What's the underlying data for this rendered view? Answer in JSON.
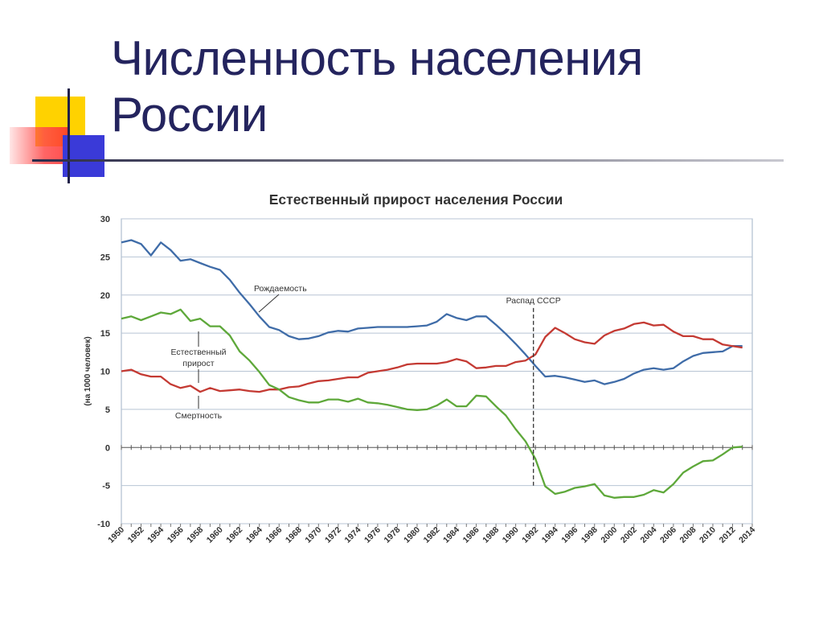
{
  "slide": {
    "title_line1": "Численность населения",
    "title_line2": "России"
  },
  "colors": {
    "title": "#24245e",
    "birth": "#3f6ca8",
    "death": "#c43a33",
    "natural": "#5ea83a",
    "grid": "#b8c4d4",
    "deco_yellow": "#ffd200",
    "deco_red": "#ff3b3b",
    "deco_blue": "#3a3ad8"
  },
  "chart_data": {
    "type": "line",
    "title": "Естественный прирост населения России",
    "ylabel": "(на 1000 человек)",
    "xlim": [
      1950,
      2014
    ],
    "ylim": [
      -10,
      30
    ],
    "x_ticks": [
      "1950",
      "1952",
      "1954",
      "1956",
      "1958",
      "1960",
      "1962",
      "1964",
      "1966",
      "1968",
      "1970",
      "1972",
      "1974",
      "1976",
      "1978",
      "1980",
      "1982",
      "1984",
      "1986",
      "1988",
      "1990",
      "1992",
      "1994",
      "1996",
      "1998",
      "2000",
      "2002",
      "2004",
      "2006",
      "2008",
      "2010",
      "2012",
      "2014"
    ],
    "y_ticks": [
      "30",
      "25",
      "20",
      "15",
      "10",
      "5",
      "0",
      "-5",
      "-10"
    ],
    "grid": true,
    "x": [
      1950,
      1951,
      1952,
      1953,
      1954,
      1955,
      1956,
      1957,
      1958,
      1959,
      1960,
      1961,
      1962,
      1963,
      1964,
      1965,
      1966,
      1967,
      1968,
      1969,
      1970,
      1971,
      1972,
      1973,
      1974,
      1975,
      1976,
      1977,
      1978,
      1979,
      1980,
      1981,
      1982,
      1983,
      1984,
      1985,
      1986,
      1987,
      1988,
      1989,
      1990,
      1991,
      1992,
      1993,
      1994,
      1995,
      1996,
      1997,
      1998,
      1999,
      2000,
      2001,
      2002,
      2003,
      2004,
      2005,
      2006,
      2007,
      2008,
      2009,
      2010,
      2011,
      2012,
      2013
    ],
    "series": [
      {
        "name": "Рождаемость",
        "color_key": "birth",
        "values": [
          26.9,
          27.2,
          26.7,
          25.2,
          26.9,
          25.9,
          24.5,
          24.7,
          24.2,
          23.7,
          23.3,
          22.0,
          20.3,
          18.8,
          17.2,
          15.8,
          15.4,
          14.6,
          14.2,
          14.3,
          14.6,
          15.1,
          15.3,
          15.2,
          15.6,
          15.7,
          15.8,
          15.8,
          15.8,
          15.8,
          15.9,
          16.0,
          16.5,
          17.5,
          17.0,
          16.7,
          17.2,
          17.2,
          16.1,
          14.9,
          13.6,
          12.2,
          10.7,
          9.3,
          9.4,
          9.2,
          8.9,
          8.6,
          8.8,
          8.3,
          8.6,
          9.0,
          9.7,
          10.2,
          10.4,
          10.2,
          10.4,
          11.3,
          12.0,
          12.4,
          12.5,
          12.6,
          13.3,
          13.3
        ]
      },
      {
        "name": "Смертность",
        "color_key": "death",
        "values": [
          10.0,
          10.2,
          9.6,
          9.3,
          9.3,
          8.3,
          7.8,
          8.1,
          7.3,
          7.8,
          7.4,
          7.5,
          7.6,
          7.4,
          7.3,
          7.6,
          7.6,
          7.9,
          8.0,
          8.4,
          8.7,
          8.8,
          9.0,
          9.2,
          9.2,
          9.8,
          10.0,
          10.2,
          10.5,
          10.9,
          11.0,
          11.0,
          11.0,
          11.2,
          11.6,
          11.3,
          10.4,
          10.5,
          10.7,
          10.7,
          11.2,
          11.4,
          12.2,
          14.5,
          15.7,
          15.0,
          14.2,
          13.8,
          13.6,
          14.7,
          15.3,
          15.6,
          16.2,
          16.4,
          16.0,
          16.1,
          15.2,
          14.6,
          14.6,
          14.2,
          14.2,
          13.5,
          13.3,
          13.1
        ]
      },
      {
        "name": "Естественный прирост",
        "color_key": "natural",
        "values": [
          16.9,
          17.2,
          16.7,
          17.2,
          17.7,
          17.5,
          18.1,
          16.6,
          16.9,
          15.9,
          15.9,
          14.7,
          12.6,
          11.4,
          9.9,
          8.2,
          7.6,
          6.6,
          6.2,
          5.9,
          5.9,
          6.3,
          6.3,
          6.0,
          6.4,
          5.9,
          5.8,
          5.6,
          5.3,
          5.0,
          4.9,
          5.0,
          5.5,
          6.3,
          5.4,
          5.4,
          6.8,
          6.7,
          5.4,
          4.2,
          2.4,
          0.8,
          -1.5,
          -5.1,
          -6.1,
          -5.8,
          -5.3,
          -5.1,
          -4.8,
          -6.3,
          -6.6,
          -6.5,
          -6.5,
          -6.2,
          -5.6,
          -5.9,
          -4.8,
          -3.3,
          -2.5,
          -1.8,
          -1.7,
          -0.9,
          0.0,
          0.1
        ]
      }
    ],
    "annotations": {
      "birth_label": "Рождаемость",
      "natural_label_line1": "Естественный",
      "natural_label_line2": "прирост",
      "death_label": "Смертность",
      "ussr_label": "Распад СССР",
      "ussr_year": 1991
    }
  }
}
